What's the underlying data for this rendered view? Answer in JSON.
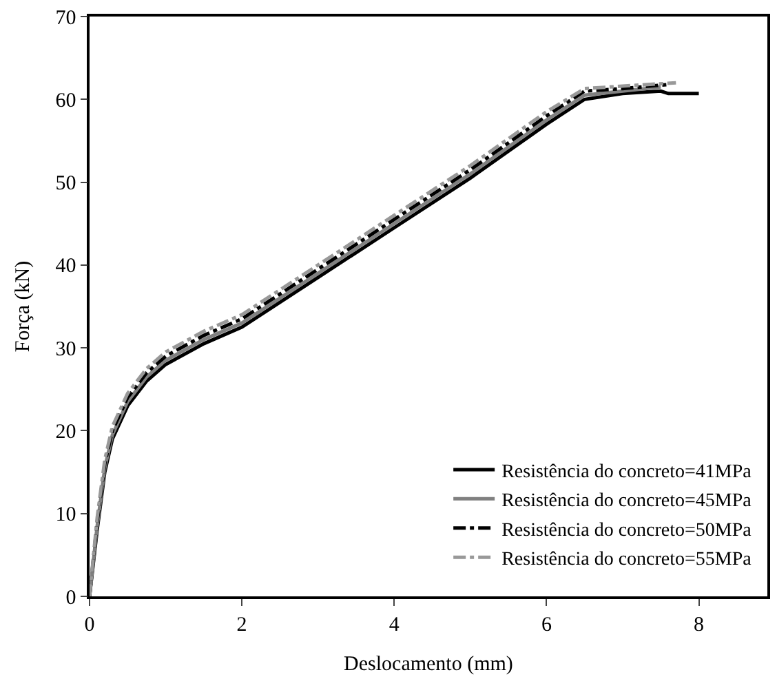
{
  "chart_data": {
    "type": "line",
    "xlabel": "Deslocamento (mm)",
    "ylabel": "Força (kN)",
    "xlim": [
      0,
      8.9
    ],
    "ylim": [
      0,
      70
    ],
    "xticks": [
      0,
      2,
      4,
      6,
      8
    ],
    "yticks": [
      0,
      10,
      20,
      30,
      40,
      50,
      60,
      70
    ],
    "grid": false,
    "legend": "bottom right",
    "marker": "none",
    "series": [
      {
        "name": "Resistência do concreto=41MPa",
        "color": "#000000",
        "line_style": "solid",
        "x": [
          0,
          0.1,
          0.2,
          0.3,
          0.5,
          0.75,
          1,
          1.5,
          2,
          3,
          4,
          5,
          6,
          6.5,
          7,
          7.5,
          7.6,
          8
        ],
        "values": [
          0,
          8,
          15,
          19,
          23,
          26,
          28,
          30.5,
          32.5,
          38.5,
          44.5,
          50.5,
          57,
          60,
          60.7,
          61,
          60.7,
          60.7
        ]
      },
      {
        "name": "Resistência do concreto=45MPa",
        "color": "#808080",
        "line_style": "solid",
        "x": [
          0,
          0.1,
          0.2,
          0.3,
          0.5,
          0.75,
          1,
          1.5,
          2,
          3,
          4,
          5,
          6,
          6.5,
          7,
          7.5
        ],
        "values": [
          0,
          8.5,
          15.5,
          19.5,
          23.5,
          26.5,
          28.5,
          31,
          33,
          39,
          45,
          51,
          57.5,
          60.5,
          61,
          61.5
        ]
      },
      {
        "name": "Resistência do concreto=50MPa",
        "color": "#000000",
        "line_style": "dashdot",
        "x": [
          0,
          0.1,
          0.2,
          0.3,
          0.5,
          0.75,
          1,
          1.5,
          2,
          3,
          4,
          5,
          6,
          6.5,
          7,
          7.6
        ],
        "values": [
          0,
          9,
          16,
          20,
          24,
          27,
          29,
          31.5,
          33.5,
          39.5,
          45.5,
          51.5,
          58,
          61,
          61.3,
          61.8
        ]
      },
      {
        "name": "Resistência do concreto=55MPa",
        "color": "#999999",
        "line_style": "dashdot",
        "x": [
          0,
          0.1,
          0.2,
          0.3,
          0.5,
          0.75,
          1,
          1.5,
          2,
          3,
          4,
          5,
          6,
          6.5,
          7,
          7.7
        ],
        "values": [
          0,
          9.5,
          16.5,
          20.5,
          24.5,
          27.5,
          29.5,
          32,
          34,
          40,
          46,
          52,
          58.5,
          61.3,
          61.6,
          62
        ]
      }
    ]
  }
}
